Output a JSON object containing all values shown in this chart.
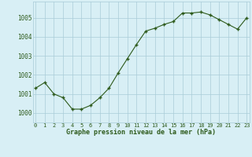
{
  "hours": [
    0,
    1,
    2,
    3,
    4,
    5,
    6,
    7,
    8,
    9,
    10,
    11,
    12,
    13,
    14,
    15,
    16,
    17,
    18,
    19,
    20,
    21,
    22,
    23
  ],
  "pressure": [
    1001.3,
    1001.6,
    1001.0,
    1000.8,
    1000.2,
    1000.2,
    1000.4,
    1000.8,
    1001.3,
    1002.1,
    1002.85,
    1003.6,
    1004.3,
    1004.45,
    1004.65,
    1004.8,
    1005.25,
    1005.25,
    1005.3,
    1005.15,
    1004.9,
    1004.65,
    1004.4,
    1005.0
  ],
  "line_color": "#2d5a1b",
  "marker_color": "#2d5a1b",
  "bg_color": "#cce8d4",
  "plot_bg_color": "#d8eff5",
  "grid_color": "#aaccd8",
  "xlabel": "Graphe pression niveau de la mer (hPa)",
  "xlabel_color": "#2d5a1b",
  "tick_color": "#2d5a1b",
  "ylim": [
    999.5,
    1005.85
  ],
  "yticks": [
    1000,
    1001,
    1002,
    1003,
    1004,
    1005
  ],
  "figsize": [
    3.2,
    2.0
  ],
  "dpi": 100
}
